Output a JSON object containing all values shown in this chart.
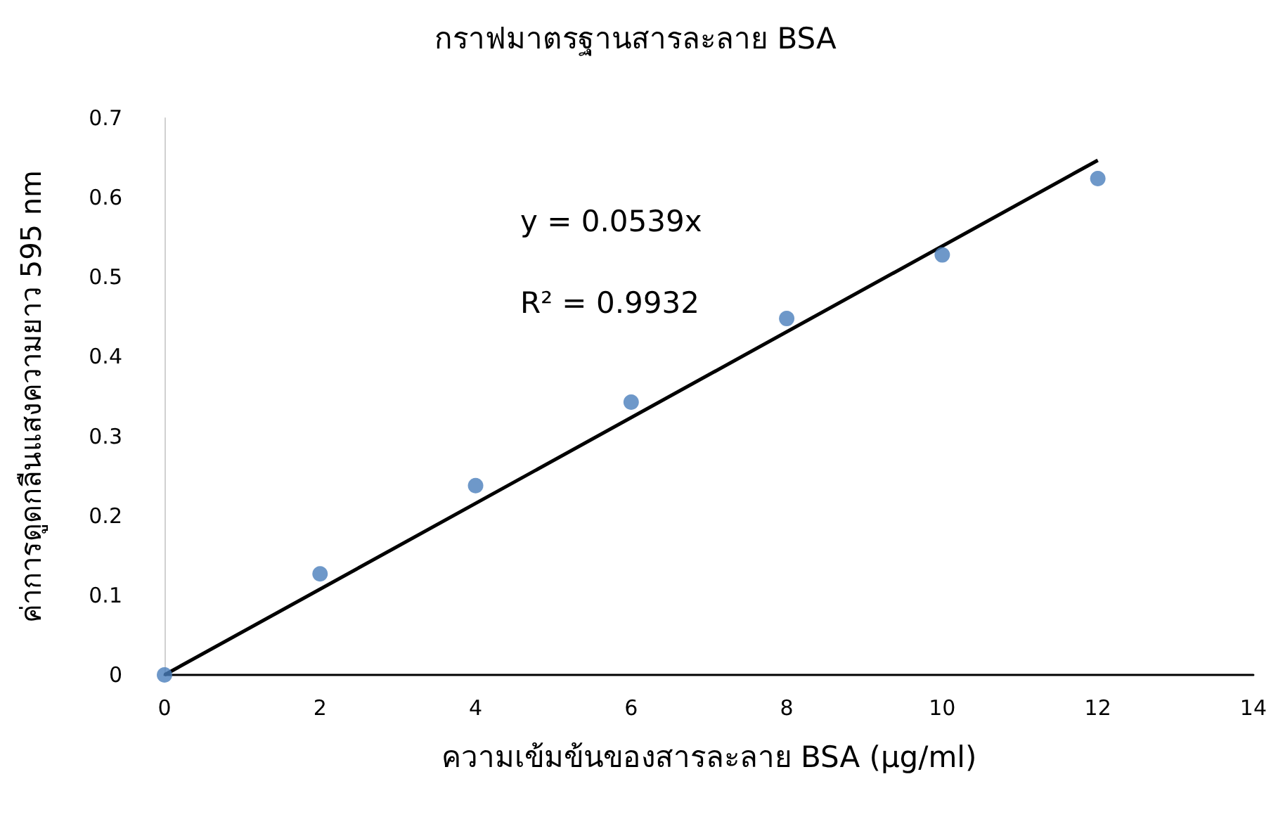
{
  "chart_data": {
    "type": "scatter",
    "title": "กราฟมาตรฐานสารละลาย BSA",
    "xlabel": "ความเข้มข้นของสารละลาย BSA (µg/ml)",
    "ylabel": "ค่าการดูดกลืนแสงความยาว 595 nm",
    "x": [
      0,
      2,
      4,
      6,
      8,
      10,
      12
    ],
    "series": [
      {
        "color": "#4a7ebb",
        "marker": "circle",
        "values": [
          0,
          0.127,
          0.238,
          0.343,
          0.448,
          0.528,
          0.624
        ]
      },
      {
        "type": "line",
        "color": "#000000",
        "marker": "none",
        "line_style": "solid",
        "x": [
          0,
          12
        ],
        "values": [
          0,
          0.647
        ]
      }
    ],
    "xlim": [
      0,
      14
    ],
    "xticks": [
      0,
      2,
      4,
      6,
      8,
      10,
      12,
      14
    ],
    "ylim": [
      0,
      0.7
    ],
    "yticks": [
      0,
      0.1,
      0.2,
      0.3,
      0.4,
      0.5,
      0.6,
      0.7
    ],
    "grid": false,
    "annotations": [
      "y = 0.0539x",
      "R² = 0.9932"
    ]
  }
}
